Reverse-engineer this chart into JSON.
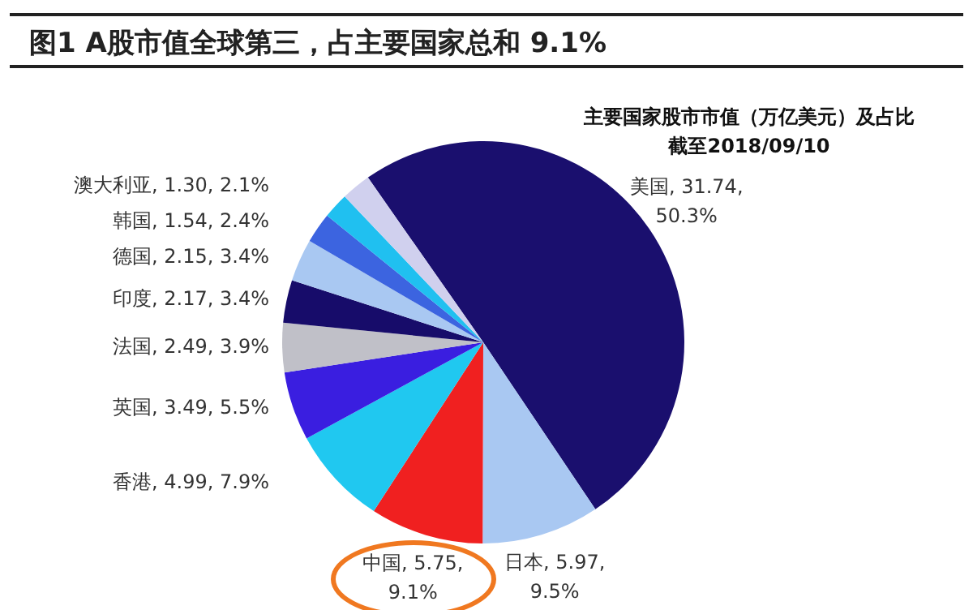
{
  "chart_data": {
    "type": "pie",
    "title": "图1  A股市值全球第三，占主要国家总和 9.1%",
    "subtitle": "主要国家股市市值（万亿美元）及占比",
    "annotations": [
      "截至2018/09/10"
    ],
    "categories": [
      "美国",
      "日本",
      "中国",
      "香港",
      "英国",
      "法国",
      "印度",
      "德国",
      "韩国",
      "澳大利亚",
      null
    ],
    "values": [
      31.74,
      5.97,
      5.75,
      4.99,
      3.49,
      2.49,
      2.17,
      2.15,
      1.54,
      1.3,
      1.5
    ],
    "value_labels": [
      "31.74, 50.3%",
      "5.97, 9.5%",
      "5.75, 9.1%",
      "4.99, 7.9%",
      "3.49, 5.5%",
      "2.49, 3.9%",
      "2.17, 3.4%",
      "2.15, 3.4%",
      "1.54, 2.4%",
      "1.30, 2.1%",
      null
    ],
    "colors": [
      "#1a0f6e",
      "#a9c8f2",
      "#f02020",
      "#20c8f0",
      "#3a1ee0",
      "#c0c0c8",
      "#170c6a",
      "#a9c8f2",
      "#3c64e0",
      "#20c0f0",
      "#d0d0ee"
    ],
    "legend": false
  }
}
